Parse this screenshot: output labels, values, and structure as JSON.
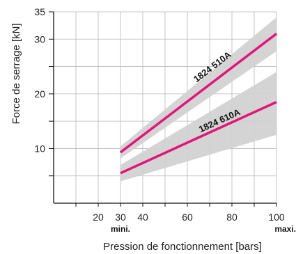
{
  "chart_data": {
    "type": "line",
    "xlabel": "Pression de fonctionnement [bars]",
    "ylabel": "Force de serrage [kN]",
    "xlim": [
      0,
      100
    ],
    "ylim": [
      0,
      35
    ],
    "x_ticks": [
      20,
      30,
      40,
      60,
      80,
      100
    ],
    "y_ticks": [
      10,
      20,
      30,
      35
    ],
    "x_annotations": [
      {
        "x": 30,
        "text": "mini."
      },
      {
        "x": 100,
        "text": "maxi."
      }
    ],
    "grid": true,
    "series": [
      {
        "name": "1824 510A",
        "x": [
          30,
          100
        ],
        "y": [
          9.3,
          31.0
        ],
        "band_low": [
          8.2,
          27.8
        ],
        "band_high": [
          10.4,
          34.0
        ],
        "label_at": [
          72,
          24.5
        ]
      },
      {
        "name": "1824 610A",
        "x": [
          30,
          100
        ],
        "y": [
          5.5,
          18.5
        ],
        "band_low": [
          4.0,
          12.5
        ],
        "band_high": [
          7.0,
          24.0
        ],
        "label_at": [
          75,
          14.6
        ]
      }
    ],
    "colors": {
      "line": "#e0167a",
      "band": "#d2d2d2",
      "grid": "#b8b8b8",
      "axis": "#111111"
    }
  }
}
